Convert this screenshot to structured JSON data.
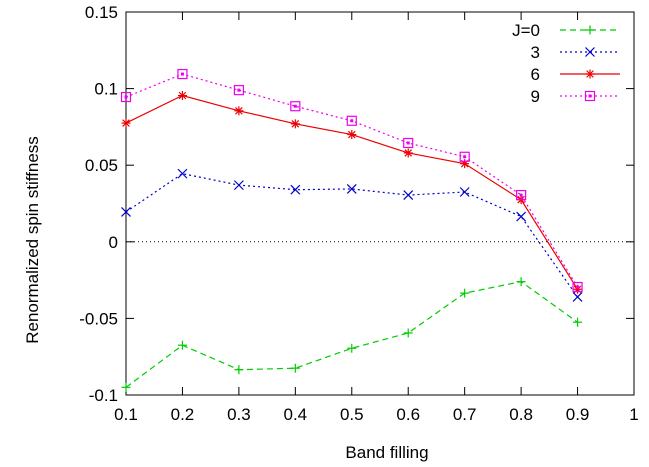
{
  "chart_data": {
    "type": "line",
    "xlabel": "Band filling",
    "ylabel": "Renormalized spin stiffness",
    "xlim": [
      0.1,
      1.0
    ],
    "ylim": [
      -0.1,
      0.15
    ],
    "x_ticks": [
      0.1,
      0.2,
      0.3,
      0.4,
      0.5,
      0.6,
      0.7,
      0.8,
      0.9,
      1.0
    ],
    "x_tick_labels": [
      "0.1",
      "0.2",
      "0.3",
      "0.4",
      "0.5",
      "0.6",
      "0.7",
      "0.8",
      "0.9",
      "1"
    ],
    "y_ticks": [
      -0.1,
      -0.05,
      0,
      0.05,
      0.1,
      0.15
    ],
    "y_tick_labels": [
      "-0.1",
      "-0.05",
      "0",
      "0.05",
      "0.1",
      "0.15"
    ],
    "zero_line": true,
    "grid": false,
    "legend_position": "top-right",
    "x": [
      0.1,
      0.2,
      0.3,
      0.4,
      0.5,
      0.6,
      0.7,
      0.8,
      0.9
    ],
    "series": [
      {
        "name": "J=0",
        "color": "#00cc00",
        "dash": "dashed",
        "marker": "plus",
        "values": [
          -0.095,
          -0.0675,
          -0.0835,
          -0.0825,
          -0.0695,
          -0.0595,
          -0.0335,
          -0.026,
          -0.0525
        ]
      },
      {
        "name": "3",
        "color": "#0000cc",
        "dash": "dotted",
        "marker": "cross",
        "values": [
          0.0195,
          0.0445,
          0.037,
          0.034,
          0.0345,
          0.0305,
          0.0325,
          0.0165,
          -0.036
        ]
      },
      {
        "name": "6",
        "color": "#ee0000",
        "dash": "solid",
        "marker": "asterisk",
        "values": [
          0.0775,
          0.0955,
          0.0855,
          0.077,
          0.07,
          0.058,
          0.051,
          0.0275,
          -0.031
        ]
      },
      {
        "name": "9",
        "color": "#ee00ee",
        "dash": "dotted",
        "marker": "square",
        "values": [
          0.0945,
          0.1095,
          0.099,
          0.0885,
          0.079,
          0.0645,
          0.0555,
          0.0305,
          -0.0295
        ]
      }
    ]
  }
}
